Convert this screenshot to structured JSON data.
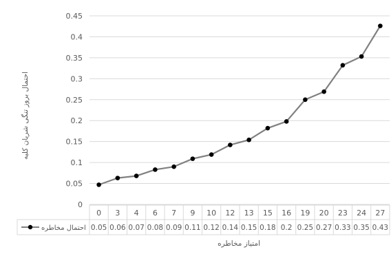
{
  "chart_data": {
    "type": "line",
    "categories": [
      "0",
      "3",
      "4",
      "6",
      "7",
      "9",
      "10",
      "12",
      "13",
      "15",
      "16",
      "19",
      "20",
      "23",
      "24",
      "27"
    ],
    "series": [
      {
        "name": "احتمال مخاطره",
        "values": [
          0.047,
          0.063,
          0.068,
          0.083,
          0.09,
          0.109,
          0.119,
          0.142,
          0.154,
          0.182,
          0.198,
          0.25,
          0.269,
          0.332,
          0.353,
          0.426
        ]
      }
    ],
    "table_values": [
      "0.05",
      "0.06",
      "0.07",
      "0.08",
      "0.09",
      "0.11",
      "0.12",
      "0.14",
      "0.15",
      "0.18",
      "0.2",
      "0.25",
      "0.27",
      "0.33",
      "0.35",
      "0.43"
    ],
    "y_ticks": [
      "0",
      "0.05",
      "0.1",
      "0.15",
      "0.2",
      "0.25",
      "0.3",
      "0.35",
      "0.4",
      "0.45"
    ],
    "ylim": [
      0,
      0.45
    ],
    "xlabel": "امتیاز مخاطره",
    "ylabel": "احتمال بروز تنگی شریان کلیه",
    "grid": true,
    "legend": "data-table",
    "colors": {
      "line": "#808080",
      "marker": "#000000",
      "grid": "#d9d9d9",
      "text": "#595959"
    }
  }
}
